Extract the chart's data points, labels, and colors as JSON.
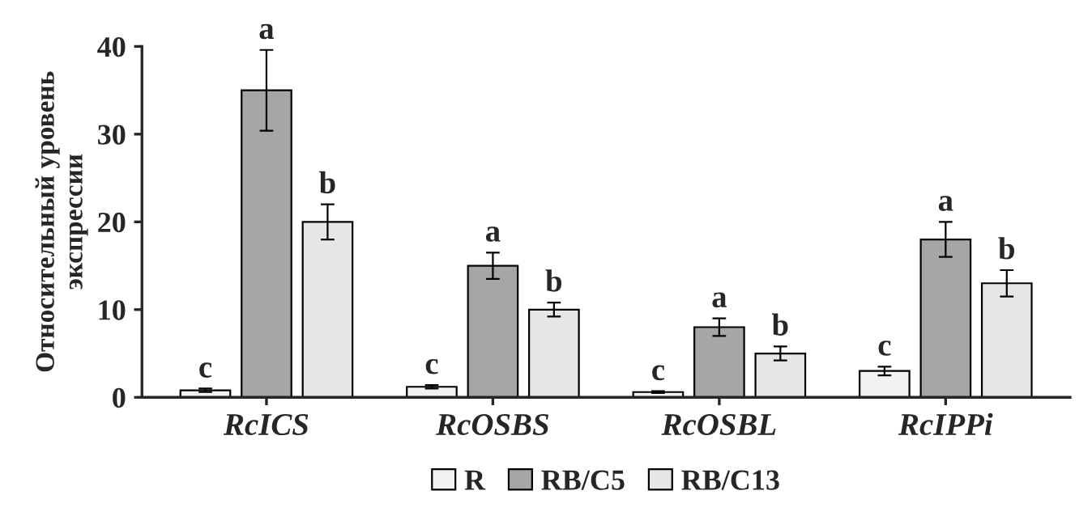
{
  "chart_data": {
    "type": "bar",
    "ylabel": "Относительный уровень\nэкспрессии",
    "categories": [
      "RcICS",
      "RcOSBS",
      "RcOSBL",
      "RcIPPi"
    ],
    "series": [
      {
        "name": "R",
        "color": "#f2f2f2",
        "values": [
          0.8,
          1.2,
          0.6,
          3
        ],
        "errors": [
          0.2,
          0.2,
          0.1,
          0.5
        ],
        "value_labels": [
          "c",
          "c",
          "c",
          "c"
        ]
      },
      {
        "name": "RB/C5",
        "color": "#a6a6a6",
        "values": [
          35,
          15,
          8,
          18
        ],
        "errors": [
          4.6,
          1.5,
          1,
          2
        ],
        "value_labels": [
          "a",
          "a",
          "a",
          "a"
        ]
      },
      {
        "name": "RB/C13",
        "color": "#e6e6e6",
        "values": [
          20,
          10,
          5,
          13
        ],
        "errors": [
          2,
          0.8,
          0.8,
          1.5
        ],
        "value_labels": [
          "b",
          "b",
          "b",
          "b"
        ]
      }
    ],
    "ylim": [
      0,
      40
    ],
    "yticks": [
      0,
      10,
      20,
      30,
      40
    ],
    "grid": false,
    "legend": "bottom"
  }
}
